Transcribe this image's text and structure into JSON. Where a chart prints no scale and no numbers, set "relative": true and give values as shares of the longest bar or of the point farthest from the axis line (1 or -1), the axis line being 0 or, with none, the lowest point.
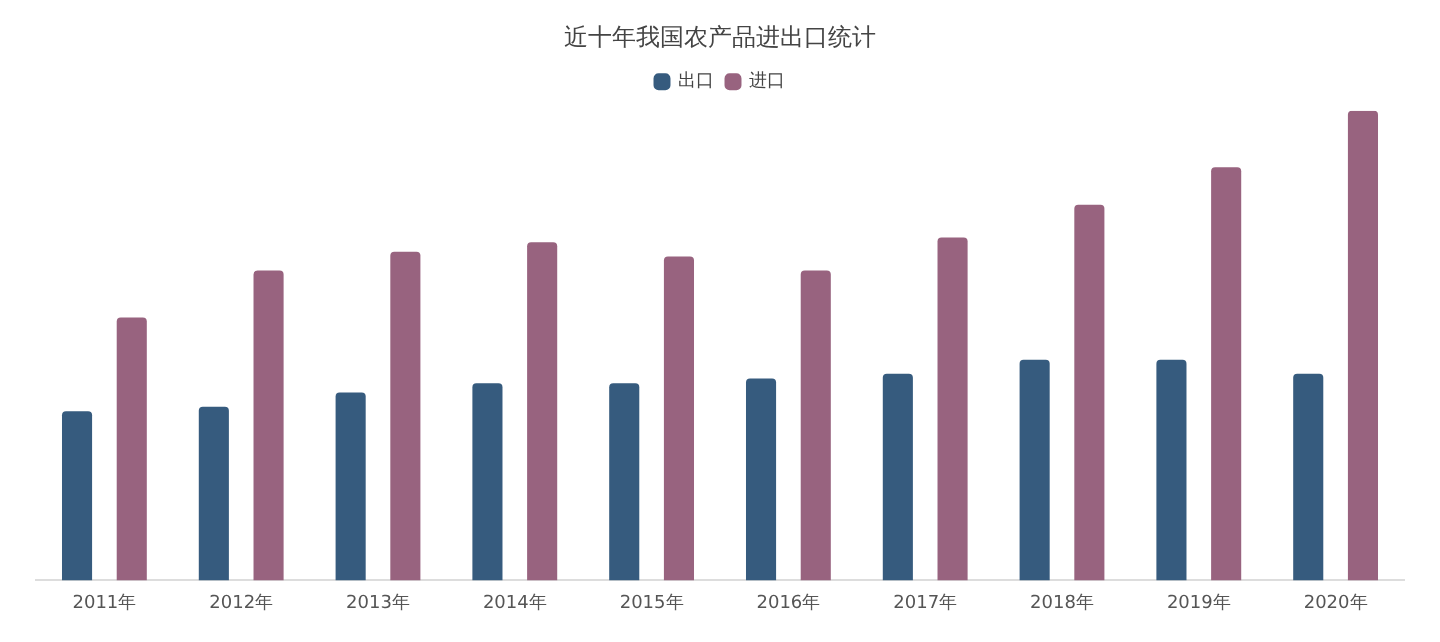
{
  "chart_data": {
    "type": "bar",
    "title": "近十年我国农产品进出口统计",
    "relative": true,
    "legend": "top",
    "grid": false,
    "categories": [
      "2011年",
      "2012年",
      "2013年",
      "2014年",
      "2015年",
      "2016年",
      "2017年",
      "2018年",
      "2019年",
      "2020年"
    ],
    "series": [
      {
        "name": "出口",
        "color": "#365b7e",
        "values": [
          0.36,
          0.37,
          0.4,
          0.42,
          0.42,
          0.43,
          0.44,
          0.47,
          0.47,
          0.44
        ]
      },
      {
        "name": "进口",
        "color": "#98637f",
        "values": [
          0.56,
          0.66,
          0.7,
          0.72,
          0.69,
          0.66,
          0.73,
          0.8,
          0.88,
          1
        ]
      }
    ]
  }
}
